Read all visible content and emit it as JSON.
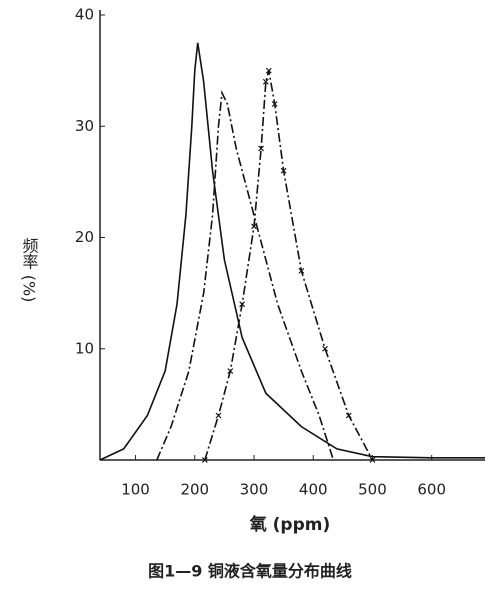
{
  "chart_data": {
    "type": "line",
    "xlabel": "氧  (ppm)",
    "ylabel": "频率 (%)",
    "caption": "图1—9  铜液含氧量分布曲线",
    "xlim": [
      40,
      690
    ],
    "ylim": [
      0,
      40
    ],
    "xticks": [
      100,
      200,
      300,
      400,
      500,
      600
    ],
    "yticks": [
      10,
      20,
      30,
      40
    ],
    "series": [
      {
        "color": "#111111",
        "dash": "solid",
        "x": [
          40,
          80,
          120,
          150,
          170,
          185,
          195,
          200,
          205,
          215,
          230,
          250,
          280,
          320,
          380,
          440,
          500,
          600,
          690
        ],
        "values": [
          0,
          1,
          4,
          8,
          14,
          22,
          30,
          35,
          37.5,
          34,
          26,
          18,
          11,
          6,
          3,
          1,
          0.3,
          0.2,
          0.2
        ]
      },
      {
        "color": "#111111",
        "dash": "dashdot",
        "x": [
          136,
          160,
          190,
          215,
          230,
          240,
          246,
          255,
          270,
          300,
          340,
          380,
          410,
          434
        ],
        "values": [
          0,
          3,
          8,
          15,
          22,
          30,
          33,
          32,
          28,
          22,
          14,
          8,
          4,
          0
        ]
      },
      {
        "color": "#111111",
        "dash": "dashdot",
        "marker": "x",
        "x": [
          217,
          240,
          260,
          280,
          300,
          312,
          320,
          325,
          335,
          350,
          380,
          420,
          460,
          500
        ],
        "values": [
          0,
          4,
          8,
          14,
          21,
          28,
          34,
          35,
          32,
          26,
          17,
          10,
          4,
          0
        ]
      }
    ]
  }
}
